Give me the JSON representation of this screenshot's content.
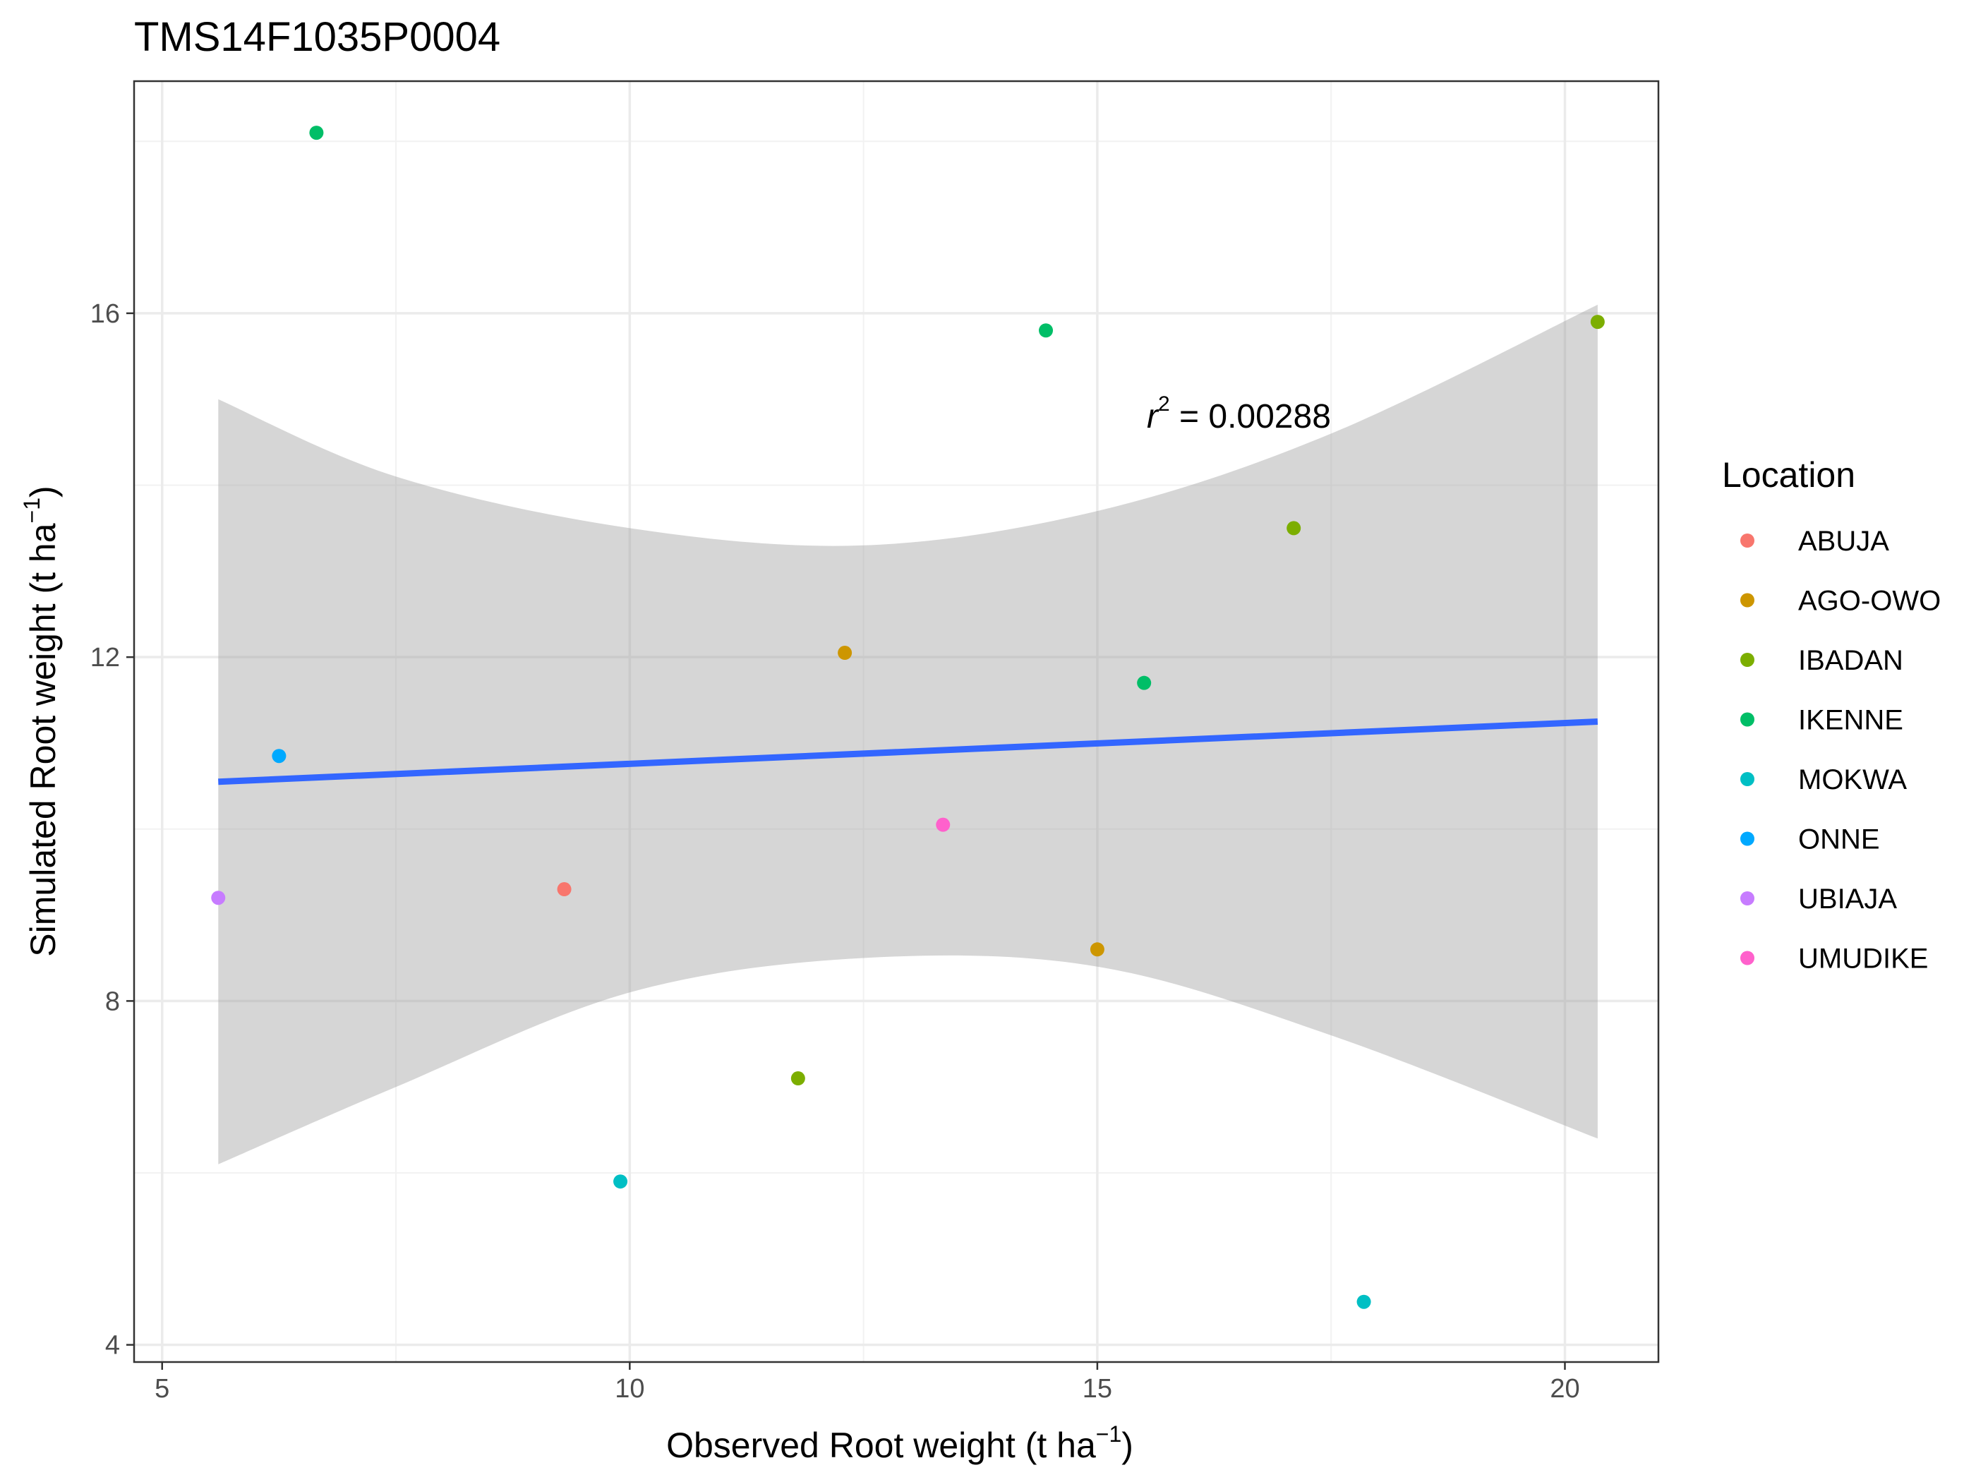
{
  "chart_data": {
    "type": "scatter",
    "title": "TMS14F1035P0004",
    "xlabel_main": "Observed Root weight",
    "ylabel_main": "Simulated Root weight",
    "unit_base": "t ha",
    "unit_exp": "−1",
    "xlim": [
      4.7,
      21
    ],
    "ylim": [
      3.8,
      18.7
    ],
    "x_major_ticks": [
      5,
      10,
      15,
      20
    ],
    "x_minor_ticks": [
      7.5,
      12.5,
      17.5
    ],
    "y_major_ticks": [
      4,
      8,
      12,
      16
    ],
    "y_minor_ticks": [
      6,
      10,
      14,
      18
    ],
    "x_tick_labels": [
      "5",
      "10",
      "15",
      "20"
    ],
    "y_tick_labels": [
      "4",
      "8",
      "12",
      "16"
    ],
    "grid": true,
    "legend": {
      "title": "Location",
      "position": "right",
      "entries": [
        {
          "name": "ABUJA",
          "color": "#F8766D"
        },
        {
          "name": "AGO-OWO",
          "color": "#CD9600"
        },
        {
          "name": "IBADAN",
          "color": "#7CAE00"
        },
        {
          "name": "IKENNE",
          "color": "#00BE67"
        },
        {
          "name": "MOKWA",
          "color": "#00BFC4"
        },
        {
          "name": "ONNE",
          "color": "#00A9FF"
        },
        {
          "name": "UBIAJA",
          "color": "#C77CFF"
        },
        {
          "name": "UMUDIKE",
          "color": "#FF61CC"
        }
      ]
    },
    "points": [
      {
        "location": "ABUJA",
        "x": 9.3,
        "y": 9.3
      },
      {
        "location": "AGO-OWO",
        "x": 12.3,
        "y": 12.05
      },
      {
        "location": "AGO-OWO",
        "x": 15.0,
        "y": 8.6
      },
      {
        "location": "IBADAN",
        "x": 11.8,
        "y": 7.1
      },
      {
        "location": "IBADAN",
        "x": 17.1,
        "y": 13.5
      },
      {
        "location": "IBADAN",
        "x": 20.35,
        "y": 15.9
      },
      {
        "location": "IKENNE",
        "x": 6.65,
        "y": 18.1
      },
      {
        "location": "IKENNE",
        "x": 14.45,
        "y": 15.8
      },
      {
        "location": "IKENNE",
        "x": 15.5,
        "y": 11.7
      },
      {
        "location": "MOKWA",
        "x": 9.9,
        "y": 5.9
      },
      {
        "location": "MOKWA",
        "x": 17.85,
        "y": 4.5
      },
      {
        "location": "ONNE",
        "x": 6.25,
        "y": 10.85
      },
      {
        "location": "UBIAJA",
        "x": 5.6,
        "y": 9.2
      },
      {
        "location": "UMUDIKE",
        "x": 13.35,
        "y": 10.05
      }
    ],
    "fit_line": {
      "color": "#3366FF",
      "x": [
        5.6,
        20.35
      ],
      "y": [
        10.55,
        11.25
      ]
    },
    "confidence_band": {
      "color": "#999999",
      "x": [
        5.6,
        7.5,
        10,
        12.5,
        15,
        17.5,
        20.35
      ],
      "upper": [
        15.0,
        14.1,
        13.5,
        13.3,
        13.7,
        14.6,
        16.1
      ],
      "lower": [
        6.1,
        7.0,
        8.1,
        8.5,
        8.4,
        7.6,
        6.4
      ]
    },
    "annotation": {
      "var": "r",
      "exp": "2",
      "text": " = 0.00288",
      "x": 15.5,
      "y": 14.8
    }
  }
}
